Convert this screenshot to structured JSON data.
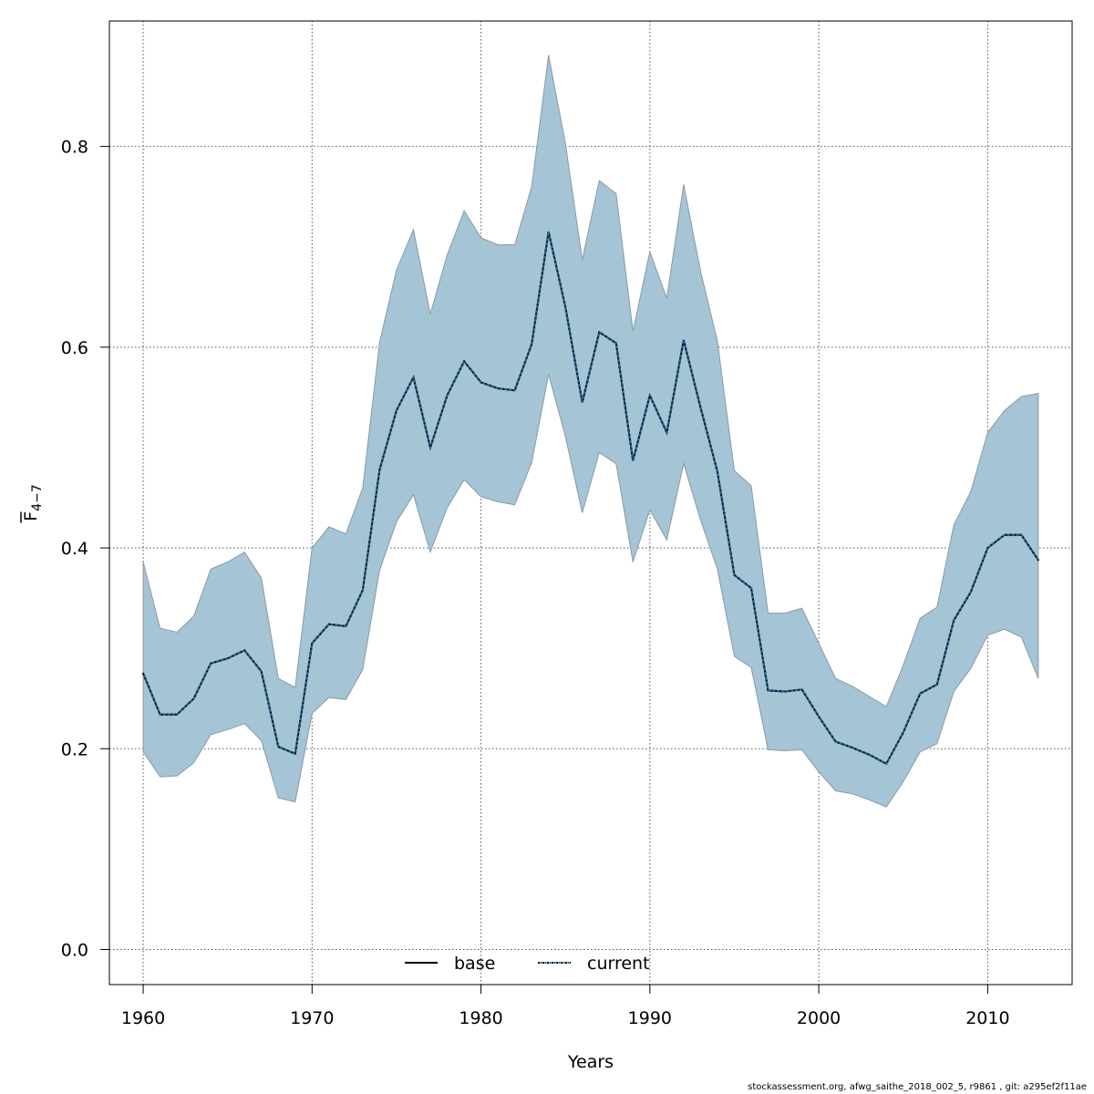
{
  "chart_data": {
    "type": "area",
    "xlabel": "Years",
    "ylabel": "F",
    "ylabel_subscript": "4−7",
    "xlim": [
      1958,
      2015
    ],
    "ylim": [
      -0.035,
      0.925
    ],
    "xticks": [
      1960,
      1970,
      1980,
      1990,
      2000,
      2010
    ],
    "yticks": [
      0.0,
      0.2,
      0.4,
      0.6,
      0.8
    ],
    "ytick_labels": [
      "0.0",
      "0.2",
      "0.4",
      "0.6",
      "0.8"
    ],
    "grid": true,
    "legend": {
      "position": "bottom-center",
      "entries": [
        "base",
        "current"
      ]
    },
    "colors": {
      "band_fill": "#a5c4d6",
      "band_stroke": "#8a9aa6",
      "line": "#000000",
      "current_line": "#1f5f8b"
    },
    "x": [
      1960,
      1961,
      1962,
      1963,
      1964,
      1965,
      1966,
      1967,
      1968,
      1969,
      1970,
      1971,
      1972,
      1973,
      1974,
      1975,
      1976,
      1977,
      1978,
      1979,
      1980,
      1981,
      1982,
      1983,
      1984,
      1985,
      1986,
      1987,
      1988,
      1989,
      1990,
      1991,
      1992,
      1993,
      1994,
      1995,
      1996,
      1997,
      1998,
      1999,
      2000,
      2001,
      2002,
      2003,
      2004,
      2005,
      2006,
      2007,
      2008,
      2009,
      2010,
      2011,
      2012,
      2013
    ],
    "series": [
      {
        "name": "base",
        "style": "solid",
        "values": [
          0.275,
          0.234,
          0.234,
          0.25,
          0.285,
          0.29,
          0.298,
          0.277,
          0.202,
          0.195,
          0.305,
          0.324,
          0.322,
          0.358,
          0.478,
          0.537,
          0.57,
          0.5,
          0.552,
          0.586,
          0.565,
          0.559,
          0.557,
          0.603,
          0.715,
          0.64,
          0.545,
          0.615,
          0.604,
          0.487,
          0.552,
          0.515,
          0.607,
          0.54,
          0.476,
          0.373,
          0.36,
          0.258,
          0.257,
          0.259,
          0.232,
          0.207,
          0.201,
          0.194,
          0.185,
          0.216,
          0.255,
          0.264,
          0.328,
          0.356,
          0.4,
          0.413,
          0.413,
          0.388
        ]
      },
      {
        "name": "current",
        "style": "dotted",
        "values": [
          0.275,
          0.234,
          0.234,
          0.25,
          0.285,
          0.29,
          0.298,
          0.277,
          0.202,
          0.195,
          0.305,
          0.324,
          0.322,
          0.358,
          0.478,
          0.537,
          0.57,
          0.5,
          0.552,
          0.586,
          0.565,
          0.559,
          0.557,
          0.603,
          0.715,
          0.64,
          0.545,
          0.615,
          0.604,
          0.487,
          0.552,
          0.515,
          0.607,
          0.54,
          0.476,
          0.373,
          0.36,
          0.258,
          0.257,
          0.259,
          0.232,
          0.207,
          0.201,
          0.194,
          0.185,
          0.216,
          0.255,
          0.264,
          0.328,
          0.356,
          0.4,
          0.413,
          0.413,
          0.388
        ]
      }
    ],
    "band": {
      "upper": [
        0.386,
        0.32,
        0.316,
        0.332,
        0.379,
        0.386,
        0.396,
        0.37,
        0.27,
        0.261,
        0.4,
        0.421,
        0.414,
        0.46,
        0.605,
        0.677,
        0.717,
        0.633,
        0.692,
        0.736,
        0.709,
        0.702,
        0.702,
        0.76,
        0.891,
        0.803,
        0.687,
        0.766,
        0.753,
        0.616,
        0.695,
        0.649,
        0.762,
        0.676,
        0.606,
        0.477,
        0.462,
        0.335,
        0.335,
        0.34,
        0.305,
        0.27,
        0.262,
        0.252,
        0.242,
        0.283,
        0.33,
        0.341,
        0.423,
        0.456,
        0.515,
        0.537,
        0.551,
        0.554
      ],
      "lower": [
        0.197,
        0.172,
        0.173,
        0.186,
        0.214,
        0.219,
        0.225,
        0.208,
        0.151,
        0.147,
        0.235,
        0.251,
        0.249,
        0.279,
        0.378,
        0.426,
        0.453,
        0.396,
        0.44,
        0.468,
        0.451,
        0.446,
        0.443,
        0.485,
        0.573,
        0.511,
        0.435,
        0.495,
        0.484,
        0.386,
        0.438,
        0.408,
        0.484,
        0.428,
        0.379,
        0.292,
        0.281,
        0.199,
        0.198,
        0.199,
        0.177,
        0.158,
        0.155,
        0.149,
        0.142,
        0.167,
        0.197,
        0.205,
        0.257,
        0.28,
        0.313,
        0.319,
        0.311,
        0.27
      ]
    }
  },
  "footer": {
    "text": "stockassessment.org, afwg_saithe_2018_002_5, r9861 , git: a295ef2f11ae"
  }
}
